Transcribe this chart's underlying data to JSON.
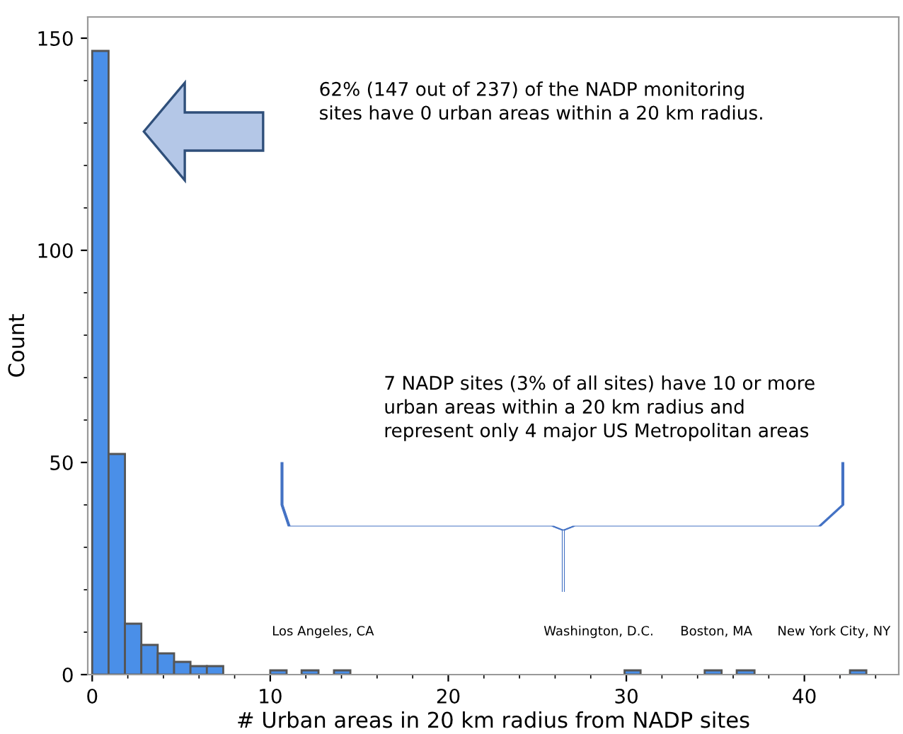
{
  "chart_data": {
    "type": "histogram",
    "xlabel": "# Urban areas in 20 km radius from NADP sites",
    "ylabel": "Count",
    "bins": [
      0,
      0.92,
      1.84,
      2.76,
      3.68,
      4.6,
      5.52,
      6.44,
      7.36,
      10,
      10.92,
      11.76,
      12.71,
      13.58,
      14.5,
      29.9,
      30.8,
      34.4,
      35.35,
      36.2,
      37.2,
      42.56,
      43.48
    ],
    "values": [
      147,
      52,
      12,
      7,
      5,
      3,
      2,
      2,
      0,
      1,
      0,
      1,
      0,
      1,
      0,
      1,
      0,
      1,
      0,
      1,
      0,
      1
    ],
    "color": "#4a8fe8",
    "xlim": [
      -0.25,
      45.3
    ],
    "ylim": [
      0,
      155
    ],
    "xticks": [
      0,
      10,
      20,
      30,
      40
    ],
    "yticks": [
      0,
      50,
      100,
      150
    ],
    "grid": false,
    "legend": false,
    "annotations": [
      "62% (147 out of 237) of the NADP monitoring\nsites have 0 urban areas within a 20 km radius.",
      "7 NADP sites (3% of all sites) have 10 or more\nurban areas within a 20 km radius and\nrepresent only 4 major US Metropolitan areas",
      "Los Angeles, CA",
      "Washington, D.C.",
      "Boston, MA",
      "New York City, NY"
    ]
  }
}
